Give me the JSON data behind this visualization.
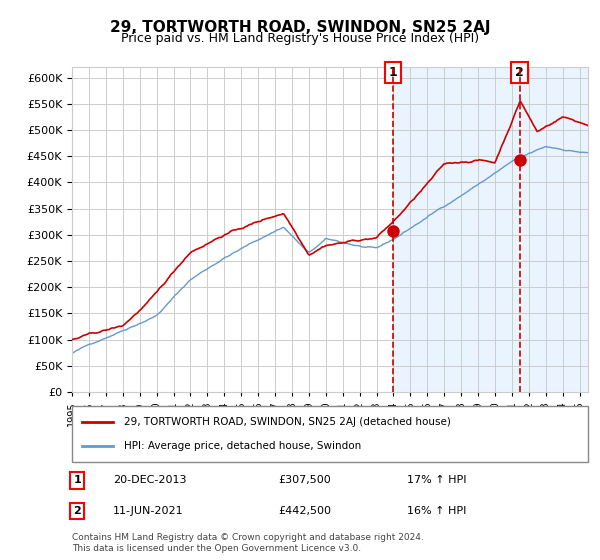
{
  "title": "29, TORTWORTH ROAD, SWINDON, SN25 2AJ",
  "subtitle": "Price paid vs. HM Land Registry's House Price Index (HPI)",
  "hpi_label": "HPI: Average price, detached house, Swindon",
  "property_label": "29, TORTWORTH ROAD, SWINDON, SN25 2AJ (detached house)",
  "sale1_date": "20-DEC-2013",
  "sale1_price": 307500,
  "sale1_hpi": "17% ↑ HPI",
  "sale2_date": "11-JUN-2021",
  "sale2_price": 442500,
  "sale2_hpi": "16% ↑ HPI",
  "ylim": [
    0,
    620000
  ],
  "start_year": 1995,
  "end_year": 2025,
  "red_color": "#cc0000",
  "blue_color": "#6699cc",
  "blue_fill": "#ddeeff",
  "grid_color": "#cccccc",
  "background": "#ffffff",
  "footnote": "Contains HM Land Registry data © Crown copyright and database right 2024.\nThis data is licensed under the Open Government Licence v3.0."
}
